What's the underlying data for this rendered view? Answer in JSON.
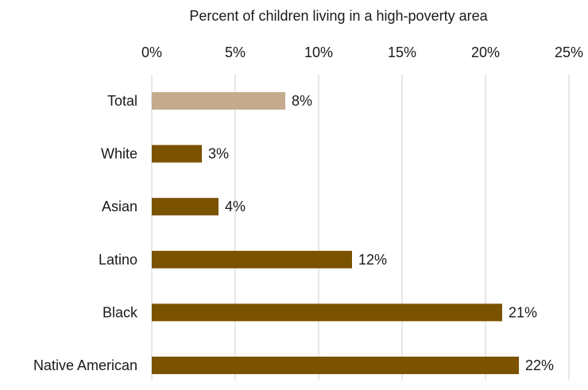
{
  "chart_data": {
    "type": "bar",
    "orientation": "horizontal",
    "title": "",
    "xlabel": "Percent of children living in a high-poverty area",
    "ylabel": "",
    "xlim": [
      0,
      25
    ],
    "x_ticks": [
      0,
      5,
      10,
      15,
      20,
      25
    ],
    "x_tick_labels": [
      "0%",
      "5%",
      "10%",
      "15%",
      "20%",
      "25%"
    ],
    "categories": [
      "Total",
      "White",
      "Asian",
      "Latino",
      "Black",
      "Native American"
    ],
    "values": [
      8,
      3,
      4,
      12,
      21,
      22
    ],
    "data_labels": [
      "8%",
      "3%",
      "4%",
      "12%",
      "21%",
      "22%"
    ],
    "colors": [
      "#c4ab8d",
      "#7a5200",
      "#7a5200",
      "#7a5200",
      "#7a5200",
      "#7a5200"
    ],
    "axis_position": "top",
    "grid": true,
    "legend": false
  }
}
